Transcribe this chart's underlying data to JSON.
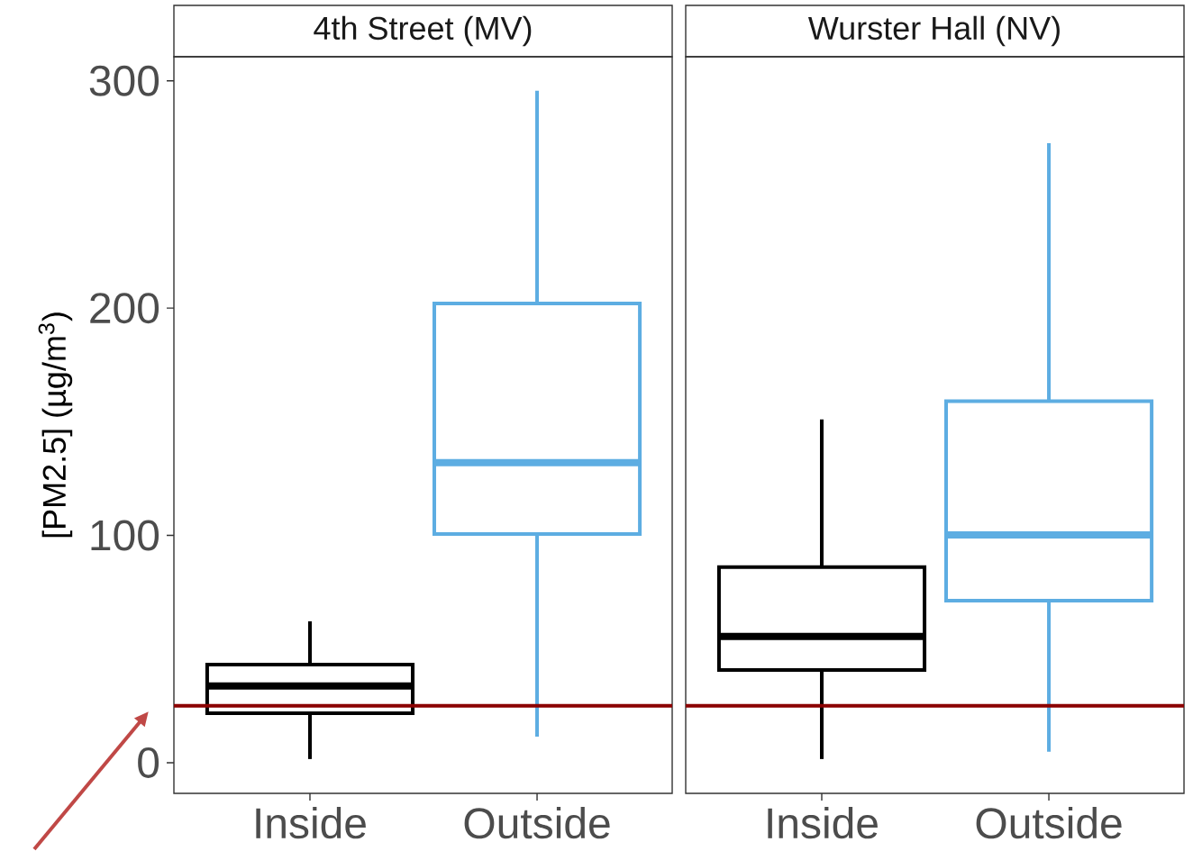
{
  "chart_data": [
    {
      "type": "box",
      "title": "4th Street (MV)",
      "ylabel": "[PM2.5] (µg/m$^{3}$)",
      "categories": [
        "Inside",
        "Outside"
      ],
      "boxes": [
        {
          "low": 1.6,
          "q1": 21.8,
          "median": 33.7,
          "q3": 43.2,
          "high": 62.2
        },
        {
          "low": 11.5,
          "q1": 100.6,
          "median": 132,
          "q3": 202,
          "high": 295.6
        }
      ],
      "colors": [
        "#000000",
        "#5dade2"
      ],
      "ylim": [
        -13.5,
        310.6
      ],
      "yticks": [
        0,
        100,
        200,
        300
      ],
      "ref_lines": [
        {
          "axis": "y",
          "value": 25,
          "color": "#8b0000"
        }
      ],
      "grid": false
    },
    {
      "type": "box",
      "title": "Wurster Hall (NV)",
      "categories": [
        "Inside",
        "Outside"
      ],
      "boxes": [
        {
          "low": 1.6,
          "q1": 40.8,
          "median": 55.5,
          "q3": 86,
          "high": 151
        },
        {
          "low": 4.8,
          "q1": 71.3,
          "median": 100.2,
          "q3": 159,
          "high": 272.6
        }
      ],
      "colors": [
        "#000000",
        "#5dade2"
      ],
      "ylim": [
        -13.5,
        310.6
      ],
      "yticks": [
        0,
        100,
        200,
        300
      ],
      "ref_lines": [
        {
          "axis": "y",
          "value": 25,
          "color": "#8b0000"
        }
      ],
      "grid": false,
      "tick_labels": "x"
    }
  ]
}
